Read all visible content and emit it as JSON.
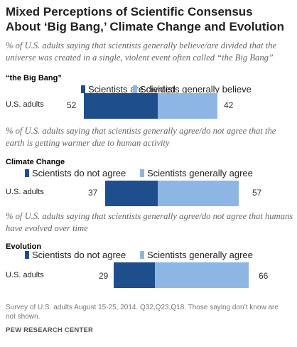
{
  "title": "Mixed Perceptions of Scientific Consensus About ‘Big Bang,’ Climate Change and Evolution",
  "footnote": "Survey of U.S. adults August 15-25, 2014. Q32,Q23,Q18. Those saying don’t know are not shown.",
  "source": "PEW RESEARCH CENTER",
  "colors": {
    "dark": "#1f4e8c",
    "light": "#8eb6e4"
  },
  "chart_data": [
    {
      "type": "bar",
      "subtitle": "% of U.S. adults saying that scientists generally believe/are divided that the universe was created in a single, violent event often called “the Big Bang”",
      "title": "“the Big Bang”",
      "categories": [
        "U.S. adults"
      ],
      "series": [
        {
          "name": "Scientists are divided",
          "values": [
            52
          ]
        },
        {
          "name": "Scientists generally believe",
          "values": [
            42
          ]
        }
      ]
    },
    {
      "type": "bar",
      "subtitle": "% of U.S. adults saying that scientists generally agree/do not agree that the earth is getting warmer due to human activity",
      "title": "Climate Change",
      "categories": [
        "U.S. adults"
      ],
      "series": [
        {
          "name": "Scientists do not agree",
          "values": [
            37
          ]
        },
        {
          "name": "Scientists generally agree",
          "values": [
            57
          ]
        }
      ]
    },
    {
      "type": "bar",
      "subtitle": "% of U.S. adults saying that scientists generally agree/do not agree that humans have evolved over time",
      "title": "Evolution",
      "categories": [
        "U.S. adults"
      ],
      "series": [
        {
          "name": "Scientists do not agree",
          "values": [
            29
          ]
        },
        {
          "name": "Scientists generally agree",
          "values": [
            66
          ]
        }
      ]
    }
  ]
}
